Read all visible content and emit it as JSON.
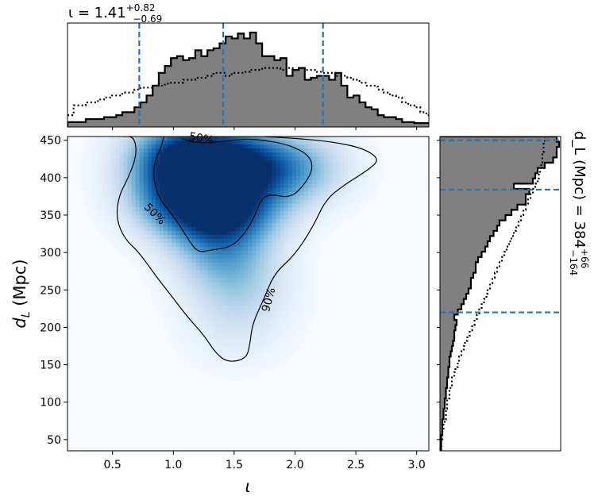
{
  "chart_data": [
    {
      "type": "heatmap",
      "panel": "joint",
      "xlabel": "ι",
      "ylabel": "d_L (Mpc)",
      "xlim": [
        0.13,
        3.1
      ],
      "ylim": [
        35,
        455
      ],
      "xticks": [
        0.5,
        1.0,
        1.5,
        2.0,
        2.5,
        3.0
      ],
      "xtick_labels": [
        "0.5",
        "1.0",
        "1.5",
        "2.0",
        "2.5",
        "3.0"
      ],
      "yticks": [
        50,
        100,
        150,
        200,
        250,
        300,
        350,
        400,
        450
      ],
      "ytick_labels": [
        "50",
        "100",
        "150",
        "200",
        "250",
        "300",
        "350",
        "400",
        "450"
      ],
      "colormap": "Blues",
      "density_blobs": [
        {
          "x": 1.0,
          "y": 430,
          "weight": 1.0
        },
        {
          "x": 1.3,
          "y": 430,
          "weight": 1.0
        },
        {
          "x": 1.65,
          "y": 420,
          "weight": 0.9
        },
        {
          "x": 2.05,
          "y": 412,
          "weight": 0.6
        },
        {
          "x": 1.0,
          "y": 378,
          "weight": 0.85
        },
        {
          "x": 1.2,
          "y": 355,
          "weight": 0.7
        },
        {
          "x": 1.45,
          "y": 350,
          "weight": 0.65
        },
        {
          "x": 1.6,
          "y": 370,
          "weight": 0.6
        },
        {
          "x": 1.4,
          "y": 305,
          "weight": 0.5
        },
        {
          "x": 1.5,
          "y": 270,
          "weight": 0.35
        },
        {
          "x": 1.55,
          "y": 230,
          "weight": 0.25
        },
        {
          "x": 1.5,
          "y": 185,
          "weight": 0.12
        }
      ],
      "contours": [
        {
          "level": "50%",
          "label": "50%",
          "label_positions": [
            {
              "x": 1.23,
              "y": 453,
              "rotation": 10
            },
            {
              "x": 0.85,
              "y": 352,
              "rotation": 45
            }
          ],
          "path": [
            [
              1.07,
              452
            ],
            [
              1.2,
              446
            ],
            [
              1.38,
              448
            ],
            [
              1.58,
              452
            ],
            [
              1.75,
              450
            ],
            [
              1.95,
              444
            ],
            [
              2.12,
              430
            ],
            [
              2.15,
              410
            ],
            [
              2.05,
              385
            ],
            [
              1.95,
              373
            ],
            [
              1.8,
              378
            ],
            [
              1.72,
              372
            ],
            [
              1.65,
              340
            ],
            [
              1.5,
              308
            ],
            [
              1.3,
              303
            ],
            [
              1.2,
              300
            ],
            [
              1.12,
              318
            ],
            [
              1.02,
              345
            ],
            [
              0.9,
              368
            ],
            [
              0.84,
              392
            ],
            [
              0.84,
              420
            ],
            [
              0.9,
              440
            ],
            [
              0.92,
              455
            ]
          ]
        },
        {
          "level": "90%",
          "label": "90%",
          "label_positions": [
            {
              "x": 1.78,
              "y": 237,
              "rotation": -75
            }
          ],
          "path": [
            [
              0.58,
              455
            ],
            [
              0.68,
              455
            ],
            [
              0.7,
              430
            ],
            [
              0.63,
              400
            ],
            [
              0.55,
              375
            ],
            [
              0.53,
              345
            ],
            [
              0.6,
              318
            ],
            [
              0.72,
              300
            ],
            [
              0.84,
              272
            ],
            [
              0.98,
              243
            ],
            [
              1.12,
              213
            ],
            [
              1.25,
              190
            ],
            [
              1.35,
              165
            ],
            [
              1.45,
              153
            ],
            [
              1.6,
              158
            ],
            [
              1.63,
              178
            ],
            [
              1.65,
              205
            ],
            [
              1.75,
              240
            ],
            [
              1.83,
              272
            ],
            [
              2.0,
              297
            ],
            [
              2.15,
              335
            ],
            [
              2.25,
              370
            ],
            [
              2.4,
              390
            ],
            [
              2.6,
              410
            ],
            [
              2.7,
              425
            ],
            [
              2.55,
              440
            ],
            [
              2.3,
              448
            ],
            [
              2.05,
              452
            ],
            [
              1.75,
              455
            ]
          ]
        }
      ]
    },
    {
      "type": "histogram",
      "panel": "top-marginal",
      "title": "ι = 1.41^{+0.82}_{-0.69}",
      "title_main": "ι = 1.41",
      "title_sup": "+0.82",
      "title_sub": "−0.69",
      "bin_start": 0.13,
      "bin_width": 0.05,
      "values": [
        0.05,
        0.05,
        0.05,
        0.08,
        0.08,
        0.08,
        0.1,
        0.1,
        0.12,
        0.15,
        0.15,
        0.2,
        0.25,
        0.32,
        0.42,
        0.55,
        0.62,
        0.7,
        0.72,
        0.68,
        0.7,
        0.78,
        0.72,
        0.78,
        0.8,
        0.85,
        0.92,
        0.9,
        0.95,
        0.9,
        0.96,
        0.85,
        0.72,
        0.72,
        0.68,
        0.7,
        0.52,
        0.58,
        0.6,
        0.48,
        0.5,
        0.52,
        0.52,
        0.48,
        0.55,
        0.42,
        0.3,
        0.32,
        0.25,
        0.2,
        0.18,
        0.12,
        0.1,
        0.1,
        0.08,
        0.05,
        0.05,
        0.04,
        0.04,
        0.04
      ],
      "prior_values": [
        0.12,
        0.22,
        0.22,
        0.25,
        0.25,
        0.28,
        0.3,
        0.32,
        0.32,
        0.35,
        0.35,
        0.38,
        0.4,
        0.4,
        0.42,
        0.42,
        0.44,
        0.45,
        0.45,
        0.48,
        0.48,
        0.5,
        0.5,
        0.52,
        0.55,
        0.55,
        0.52,
        0.55,
        0.55,
        0.56,
        0.58,
        0.58,
        0.6,
        0.6,
        0.6,
        0.58,
        0.6,
        0.58,
        0.6,
        0.58,
        0.58,
        0.56,
        0.55,
        0.55,
        0.52,
        0.52,
        0.5,
        0.48,
        0.45,
        0.42,
        0.42,
        0.38,
        0.35,
        0.32,
        0.3,
        0.25,
        0.22,
        0.2,
        0.15,
        0.12
      ],
      "quantile_lines": [
        0.72,
        1.41,
        2.23
      ]
    },
    {
      "type": "histogram",
      "panel": "right-marginal",
      "orientation": "horizontal",
      "axis_label": "d_L (Mpc) = 384^{+66}_{-164}",
      "axis_label_main": "d_L (Mpc) = 384",
      "axis_label_sup": "+66",
      "axis_label_sub": "−164",
      "bin_start": 35,
      "bin_width": 7,
      "values": [
        0.01,
        0.01,
        0.01,
        0.02,
        0.02,
        0.02,
        0.03,
        0.03,
        0.04,
        0.04,
        0.05,
        0.05,
        0.06,
        0.06,
        0.07,
        0.07,
        0.08,
        0.08,
        0.09,
        0.1,
        0.11,
        0.12,
        0.12,
        0.13,
        0.14,
        0.12,
        0.15,
        0.18,
        0.2,
        0.22,
        0.24,
        0.26,
        0.26,
        0.28,
        0.3,
        0.3,
        0.32,
        0.35,
        0.38,
        0.4,
        0.42,
        0.45,
        0.48,
        0.5,
        0.55,
        0.6,
        0.65,
        0.72,
        0.72,
        0.75,
        0.62,
        0.78,
        0.8,
        0.82,
        0.88,
        0.95,
        0.98,
        0.98,
        1.0,
        0.98
      ],
      "prior_values": [
        0.01,
        0.01,
        0.02,
        0.02,
        0.03,
        0.04,
        0.05,
        0.05,
        0.06,
        0.06,
        0.08,
        0.08,
        0.1,
        0.1,
        0.12,
        0.13,
        0.15,
        0.16,
        0.18,
        0.2,
        0.21,
        0.23,
        0.25,
        0.27,
        0.29,
        0.31,
        0.33,
        0.35,
        0.37,
        0.39,
        0.4,
        0.42,
        0.44,
        0.46,
        0.48,
        0.5,
        0.52,
        0.54,
        0.56,
        0.58,
        0.6,
        0.62,
        0.64,
        0.66,
        0.68,
        0.7,
        0.72,
        0.74,
        0.76,
        0.78,
        0.8,
        0.82,
        0.83,
        0.84,
        0.85,
        0.86,
        0.86,
        0.87,
        0.87,
        0.88
      ],
      "quantile_lines": [
        220,
        384,
        450
      ]
    }
  ],
  "colors": {
    "hist_fill": "#808080",
    "hist_edge": "#000000",
    "quantile_line": "#1f77b4",
    "contour": "#000000"
  }
}
